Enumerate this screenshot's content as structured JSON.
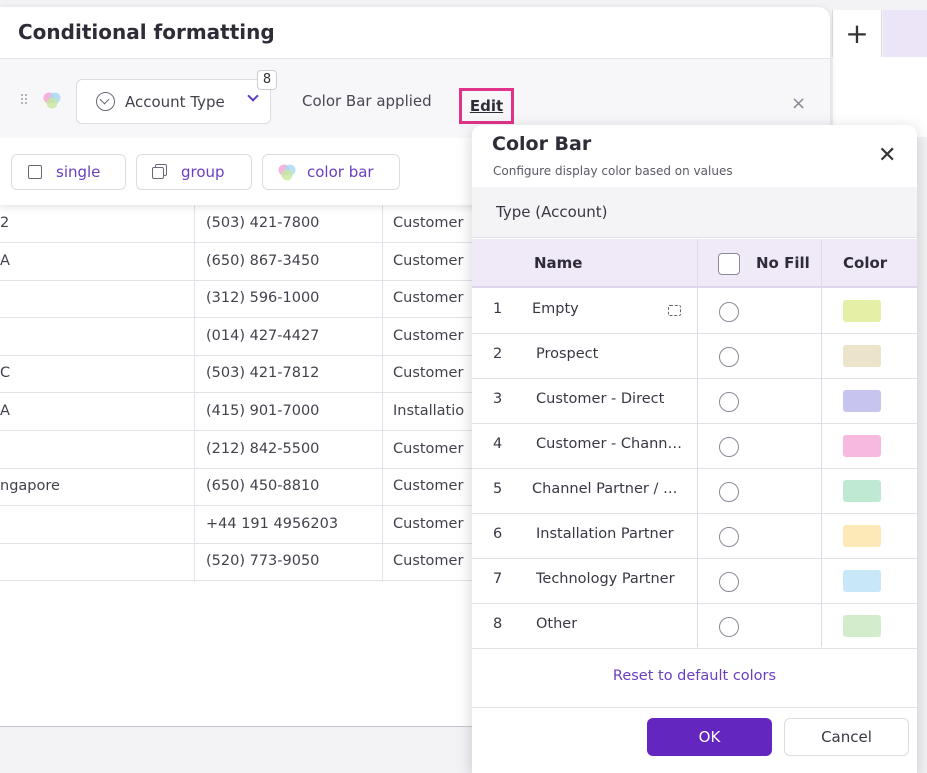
{
  "panel": {
    "title": "Conditional formatting",
    "field_label": "Account Type",
    "field_badge": "8",
    "status": "Color Bar applied",
    "edit_label": "Edit",
    "close_glyph": "×",
    "options": [
      {
        "label": "single",
        "icon": "single-square-icon"
      },
      {
        "label": "group",
        "icon": "group-squares-icon"
      },
      {
        "label": "color bar",
        "icon": "color-bar-venn-icon"
      }
    ]
  },
  "toolbar": {
    "add_glyph": "+"
  },
  "background_rows": [
    {
      "c1": "2",
      "c2": "(503) 421-7800",
      "c3": "Customer"
    },
    {
      "c1": "A",
      "c2": "(650) 867-3450",
      "c3": "Customer"
    },
    {
      "c1": "",
      "c2": "(312) 596-1000",
      "c3": "Customer"
    },
    {
      "c1": "",
      "c2": "(014) 427-4427",
      "c3": "Customer"
    },
    {
      "c1": "C",
      "c2": "(503) 421-7812",
      "c3": "Customer"
    },
    {
      "c1": "A",
      "c2": "(415) 901-7000",
      "c3": "Installatio"
    },
    {
      "c1": "",
      "c2": "(212) 842-5500",
      "c3": "Customer"
    },
    {
      "c1": "ngapore",
      "c2": "(650) 450-8810",
      "c3": "Customer"
    },
    {
      "c1": "",
      "c2": "+44 191 4956203",
      "c3": "Customer"
    },
    {
      "c1": "",
      "c2": "(520) 773-9050",
      "c3": "Customer"
    }
  ],
  "dialog": {
    "title": "Color Bar",
    "subtitle": "Configure display color based on values",
    "close_glyph": "✕",
    "type_label": "Type (Account)",
    "columns": {
      "name": "Name",
      "no_fill": "No Fill",
      "color": "Color"
    },
    "rows": [
      {
        "num": "1",
        "name": "Empty",
        "color": "#e6efa6"
      },
      {
        "num": "2",
        "name": "Prospect",
        "color": "#ebe3ca"
      },
      {
        "num": "3",
        "name": "Customer - Direct",
        "color": "#c7c4f0"
      },
      {
        "num": "4",
        "name": "Customer - Chann…",
        "color": "#f8b9e0"
      },
      {
        "num": "5",
        "name": "Channel Partner / …",
        "color": "#bfe9d2"
      },
      {
        "num": "6",
        "name": "Installation Partner",
        "color": "#fde9b7"
      },
      {
        "num": "7",
        "name": "Technology Partner",
        "color": "#c8e7f8"
      },
      {
        "num": "8",
        "name": "Other",
        "color": "#d3eccb"
      }
    ],
    "reset_label": "Reset to default colors",
    "ok_label": "OK",
    "cancel_label": "Cancel"
  }
}
